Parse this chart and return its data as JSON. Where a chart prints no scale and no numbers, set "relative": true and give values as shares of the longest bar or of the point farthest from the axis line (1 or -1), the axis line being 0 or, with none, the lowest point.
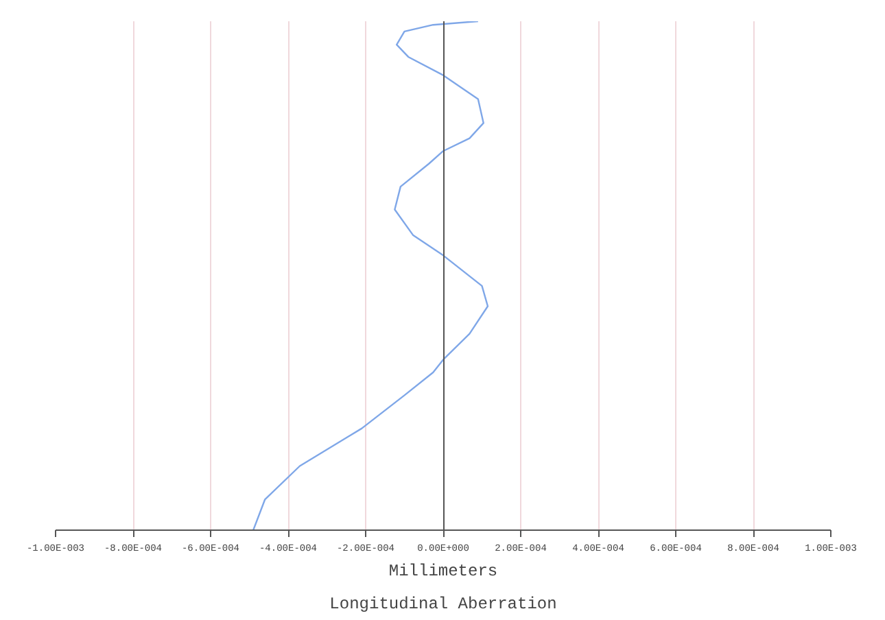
{
  "chart_data": {
    "type": "line",
    "title": "Longitudinal Aberration",
    "xlabel": "Millimeters",
    "x": [
      -0.00049,
      -0.00046,
      -0.00037,
      -0.00021,
      -0.0001,
      -2.6e-05,
      0,
      6.8e-05,
      0.000115,
      0.0001,
      0,
      -7.8e-05,
      -0.000125,
      -0.00011,
      -3.7e-05,
      0,
      6.8e-05,
      0.000104,
      9e-05,
      0,
      -9e-05,
      -0.00012,
      -0.0001,
      -2.6e-05,
      9e-05
    ],
    "series": [
      {
        "color": "#7fa7e8",
        "values": [
          0,
          0.06,
          0.126,
          0.2,
          0.265,
          0.31,
          0.335,
          0.386,
          0.44,
          0.48,
          0.54,
          0.58,
          0.63,
          0.675,
          0.72,
          0.745,
          0.77,
          0.8,
          0.847,
          0.894,
          0.93,
          0.954,
          0.98,
          0.993,
          1.0
        ]
      }
    ],
    "xlim": [
      -0.001,
      0.001
    ],
    "xticks": [
      {
        "value": -0.001,
        "label": "-1.00E-003"
      },
      {
        "value": -0.0008,
        "label": "-8.00E-004"
      },
      {
        "value": -0.0006,
        "label": "-6.00E-004"
      },
      {
        "value": -0.0004,
        "label": "-4.00E-004"
      },
      {
        "value": -0.0002,
        "label": "-2.00E-004"
      },
      {
        "value": 0,
        "label": "0.00E+000"
      },
      {
        "value": 0.0002,
        "label": "2.00E-004"
      },
      {
        "value": 0.0004,
        "label": "4.00E-004"
      },
      {
        "value": 0.0006,
        "label": "6.00E-004"
      },
      {
        "value": 0.0008,
        "label": "8.00E-004"
      },
      {
        "value": 0.001,
        "label": "1.00E-003"
      }
    ],
    "relative": true,
    "grid": "x",
    "marker": "none",
    "line_style": "solid"
  }
}
